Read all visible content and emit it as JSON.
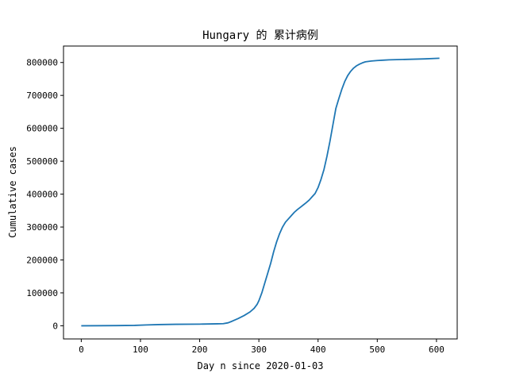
{
  "chart_data": {
    "type": "line",
    "title": "Hungary 的 累计病例",
    "xlabel": "Day n since 2020-01-03",
    "ylabel": "Cumulative cases",
    "xlim": [
      -30,
      635
    ],
    "ylim": [
      -40000,
      850000
    ],
    "xticks": [
      0,
      100,
      200,
      300,
      400,
      500,
      600
    ],
    "yticks": [
      0,
      100000,
      200000,
      300000,
      400000,
      500000,
      600000,
      700000,
      800000
    ],
    "grid": false,
    "series": [
      {
        "color": "#1f77b4",
        "x": [
          0,
          60,
          90,
          110,
          130,
          160,
          200,
          230,
          240,
          248,
          255,
          265,
          275,
          285,
          292,
          297,
          300,
          305,
          310,
          315,
          320,
          325,
          330,
          335,
          340,
          345,
          350,
          355,
          360,
          365,
          370,
          375,
          380,
          385,
          390,
          395,
          400,
          405,
          410,
          415,
          420,
          425,
          430,
          435,
          440,
          445,
          450,
          455,
          460,
          465,
          470,
          475,
          480,
          490,
          500,
          510,
          520,
          550,
          580,
          605
        ],
        "y": [
          0,
          500,
          1200,
          2500,
          3500,
          4500,
          5000,
          6000,
          6500,
          9000,
          14000,
          22000,
          31000,
          42000,
          53000,
          65000,
          76000,
          100000,
          130000,
          160000,
          190000,
          225000,
          255000,
          280000,
          300000,
          315000,
          325000,
          335000,
          345000,
          353000,
          360000,
          367000,
          374000,
          382000,
          392000,
          402000,
          420000,
          445000,
          475000,
          515000,
          560000,
          610000,
          660000,
          690000,
          718000,
          742000,
          760000,
          773000,
          783000,
          790000,
          795000,
          799000,
          802000,
          804500,
          806000,
          807000,
          808000,
          809500,
          811000,
          813000
        ]
      }
    ]
  }
}
